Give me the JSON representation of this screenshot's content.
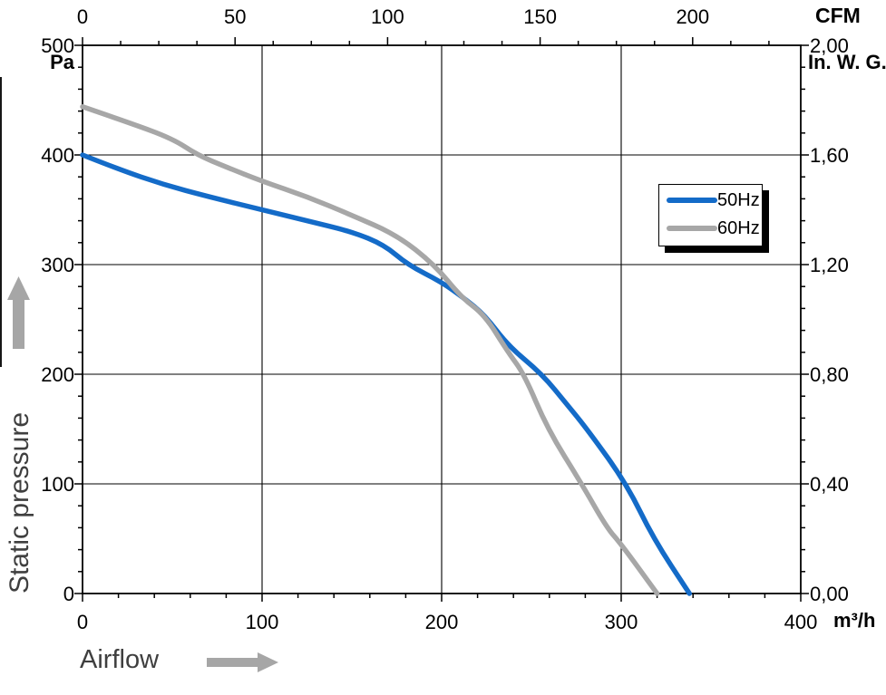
{
  "units": {
    "left": "Pa",
    "right": "In. W. G.",
    "top": "CFM",
    "bottom": "m³/h"
  },
  "axis_titles": {
    "y": "Static pressure",
    "x": "Airflow"
  },
  "legend": {
    "items": [
      {
        "label": "50Hz",
        "color": "#146BC8"
      },
      {
        "label": "60Hz",
        "color": "#A7A7A7"
      }
    ]
  },
  "colors": {
    "curve_50hz": "#146BC8",
    "curve_60hz": "#A7A7A7",
    "axis": "#000000",
    "grid": "#000000",
    "muted_text": "#3F3F3F",
    "arrow": "#A6A6A6",
    "background": "#FFFFFF"
  },
  "chart_data": {
    "type": "line",
    "title": "",
    "xlabel_bottom": "m³/h",
    "xlabel_top": "CFM",
    "ylabel_left": "Pa",
    "ylabel_right": "In. W. G.",
    "y_axis_title": "Static pressure",
    "x_axis_title": "Airflow",
    "grid": {
      "vertical_at": [
        100,
        200,
        300
      ],
      "horizontal_at": [
        100,
        200,
        300,
        400
      ]
    },
    "x_bottom": {
      "unit": "m³/h",
      "min": 0,
      "max": 400,
      "major_ticks": [
        0,
        100,
        200,
        300,
        400
      ],
      "major_tick_labels": [
        "0",
        "100",
        "200",
        "300",
        "400"
      ],
      "minor_step": 20
    },
    "x_top": {
      "unit": "CFM",
      "major_ticks": [
        0,
        50,
        100,
        150,
        200
      ],
      "major_tick_labels": [
        "0",
        "50",
        "100",
        "150",
        "200"
      ],
      "minor_step": 12.5,
      "cfm_per_m3h": 0.58858
    },
    "y_left": {
      "unit": "Pa",
      "min": 0,
      "max": 500,
      "major_ticks": [
        0,
        100,
        200,
        300,
        400,
        500
      ],
      "major_tick_labels": [
        "0",
        "100",
        "200",
        "300",
        "400",
        "500"
      ],
      "minor_step": 20
    },
    "y_right": {
      "unit": "In. W. G.",
      "min": 0,
      "max": 2.0,
      "major_ticks": [
        0,
        0.4,
        0.8,
        1.2,
        1.6,
        2.0
      ],
      "major_tick_labels": [
        "0,00",
        "0,40",
        "0,80",
        "1,20",
        "1,60",
        "2,00"
      ],
      "minor_step": 0.08
    },
    "series": [
      {
        "name": "50Hz",
        "color": "#146BC8",
        "points_m3h_pa": [
          [
            0,
            400
          ],
          [
            20,
            387
          ],
          [
            45,
            373
          ],
          [
            70,
            362
          ],
          [
            100,
            350
          ],
          [
            125,
            340
          ],
          [
            150,
            330
          ],
          [
            168,
            318
          ],
          [
            181,
            300
          ],
          [
            200,
            284
          ],
          [
            212,
            270
          ],
          [
            224,
            254
          ],
          [
            237,
            226
          ],
          [
            256,
            200
          ],
          [
            270,
            172
          ],
          [
            281,
            150
          ],
          [
            303,
            100
          ],
          [
            318,
            50
          ],
          [
            338,
            0
          ]
        ]
      },
      {
        "name": "60Hz",
        "color": "#A7A7A7",
        "points_m3h_pa": [
          [
            0,
            444
          ],
          [
            25,
            430
          ],
          [
            50,
            415
          ],
          [
            64,
            400
          ],
          [
            80,
            389
          ],
          [
            100,
            376
          ],
          [
            125,
            362
          ],
          [
            150,
            345
          ],
          [
            175,
            327
          ],
          [
            196,
            300
          ],
          [
            211,
            270
          ],
          [
            224,
            254
          ],
          [
            237,
            220
          ],
          [
            246,
            200
          ],
          [
            259,
            150
          ],
          [
            278,
            100
          ],
          [
            292,
            60
          ],
          [
            300,
            45
          ],
          [
            320,
            0
          ]
        ]
      }
    ]
  }
}
